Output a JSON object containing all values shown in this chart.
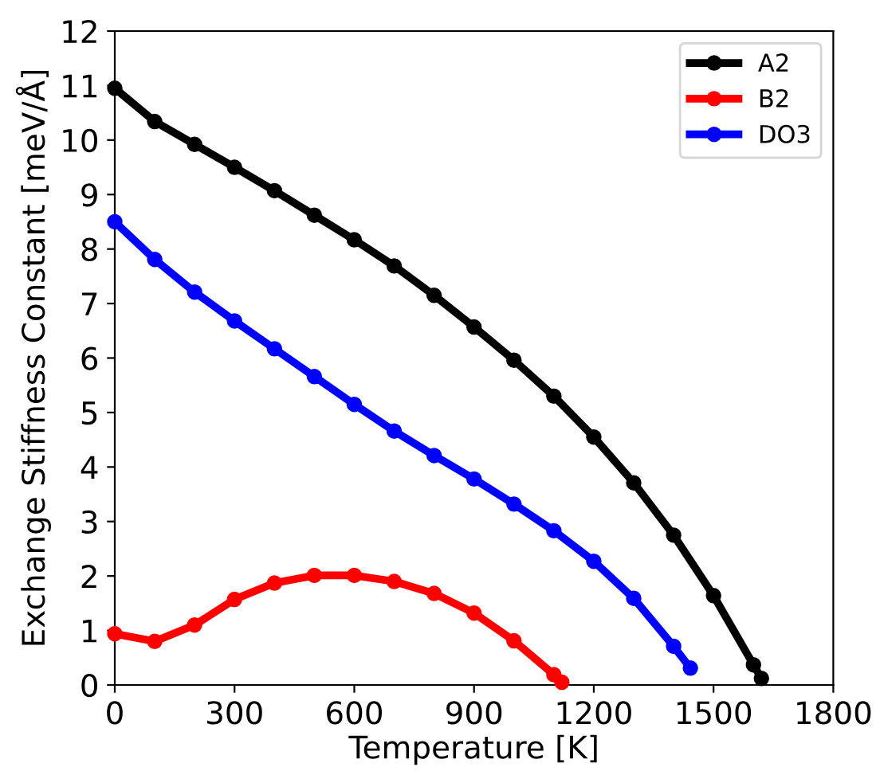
{
  "chart_data": {
    "type": "line",
    "xlabel": "Temperature [K]",
    "ylabel": "Exchange Stiffness Constant [meV/Å]",
    "xlim": [
      0,
      1800
    ],
    "xticks": [
      0,
      300,
      600,
      900,
      1200,
      1500,
      1800
    ],
    "ylim": [
      0,
      12
    ],
    "yticks": [
      0,
      1,
      2,
      3,
      4,
      5,
      6,
      7,
      8,
      9,
      10,
      11,
      12
    ],
    "marker": "circle",
    "line_style": "solid",
    "grid": false,
    "legend": "top right",
    "series": [
      {
        "name": "A2",
        "color": "#000000",
        "x": [
          0,
          100,
          200,
          300,
          400,
          500,
          600,
          700,
          800,
          900,
          1000,
          1100,
          1200,
          1300,
          1400,
          1500,
          1600,
          1620
        ],
        "values": [
          10.95,
          10.34,
          9.92,
          9.5,
          9.07,
          8.62,
          8.17,
          7.69,
          7.15,
          6.57,
          5.96,
          5.3,
          4.55,
          3.71,
          2.75,
          1.64,
          0.37,
          0.12
        ]
      },
      {
        "name": "B2",
        "color": "#ff0000",
        "x": [
          0,
          100,
          200,
          300,
          400,
          500,
          600,
          700,
          800,
          900,
          1000,
          1100,
          1120
        ],
        "values": [
          0.94,
          0.8,
          1.1,
          1.57,
          1.87,
          2.01,
          2.01,
          1.9,
          1.68,
          1.32,
          0.81,
          0.19,
          0.05
        ]
      },
      {
        "name": "DO3",
        "color": "#0000ff",
        "x": [
          0,
          100,
          200,
          300,
          400,
          500,
          600,
          700,
          800,
          900,
          1000,
          1100,
          1200,
          1300,
          1400,
          1442
        ],
        "values": [
          8.5,
          7.81,
          7.21,
          6.68,
          6.17,
          5.66,
          5.15,
          4.66,
          4.21,
          3.78,
          3.32,
          2.83,
          2.27,
          1.59,
          0.71,
          0.31
        ]
      }
    ]
  }
}
